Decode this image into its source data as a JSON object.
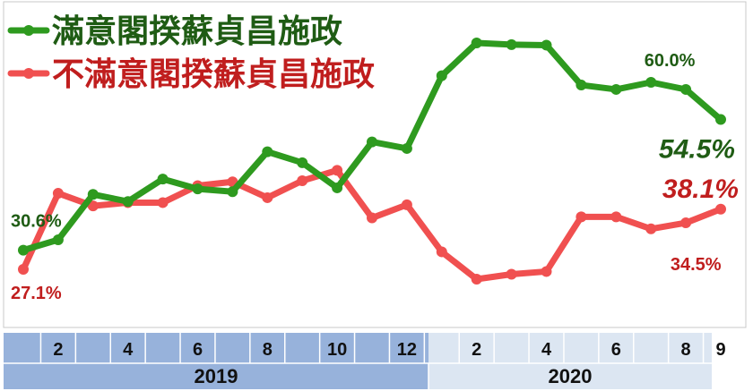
{
  "chart_data": {
    "type": "line",
    "x": [
      "2019-01",
      "2019-02",
      "2019-03",
      "2019-04",
      "2019-05",
      "2019-06",
      "2019-07",
      "2019-08",
      "2019-09",
      "2019-10",
      "2019-11",
      "2019-12",
      "2020-01",
      "2020-02",
      "2020-03",
      "2020-04",
      "2020-05",
      "2020-06",
      "2020-07",
      "2020-08",
      "2020-09"
    ],
    "tick_labels": [
      {
        "label": "2",
        "x": "2019-02"
      },
      {
        "label": "4",
        "x": "2019-04"
      },
      {
        "label": "6",
        "x": "2019-06"
      },
      {
        "label": "8",
        "x": "2019-08"
      },
      {
        "label": "10",
        "x": "2019-10"
      },
      {
        "label": "12",
        "x": "2019-12"
      },
      {
        "label": "2",
        "x": "2020-02"
      },
      {
        "label": "4",
        "x": "2020-04"
      },
      {
        "label": "6",
        "x": "2020-06"
      },
      {
        "label": "8",
        "x": "2020-08"
      },
      {
        "label": "9",
        "x": "2020-09"
      }
    ],
    "years": [
      "2019",
      "2020"
    ],
    "ylim": [
      20,
      72
    ],
    "grid": false,
    "legend_position": "top-left",
    "series": [
      {
        "name": "滿意閣揆蘇貞昌施政",
        "color": "#2e9a1f",
        "label_color": "#1f5c14",
        "values": [
          30.6,
          32.5,
          40.8,
          39.5,
          43.6,
          41.8,
          41.3,
          48.6,
          46.6,
          42.0,
          50.4,
          49.2,
          62.5,
          68.5,
          68.2,
          68.1,
          60.8,
          60.0,
          61.3,
          60.0,
          54.5
        ]
      },
      {
        "name": "不滿意閣揆蘇貞昌施政",
        "color": "#f05050",
        "label_color": "#c01e1e",
        "values": [
          27.1,
          41.0,
          38.7,
          39.3,
          39.3,
          42.4,
          43.1,
          40.2,
          43.3,
          45.2,
          36.5,
          38.9,
          30.3,
          25.3,
          26.2,
          26.7,
          36.7,
          36.7,
          34.5,
          35.6,
          38.1
        ]
      }
    ],
    "annotations": [
      {
        "text": "30.6%",
        "series": 0,
        "x": "2019-01",
        "style": "normal"
      },
      {
        "text": "27.1%",
        "series": 1,
        "x": "2019-01",
        "style": "normal"
      },
      {
        "text": "60.0%",
        "series": 0,
        "x": "2020-08",
        "style": "normal"
      },
      {
        "text": "54.5%",
        "series": 0,
        "x": "2020-09",
        "style": "large-italic"
      },
      {
        "text": "38.1%",
        "series": 1,
        "x": "2020-09",
        "style": "large-italic"
      },
      {
        "text": "34.5%",
        "series": 1,
        "x": "2020-07",
        "style": "normal"
      }
    ]
  }
}
